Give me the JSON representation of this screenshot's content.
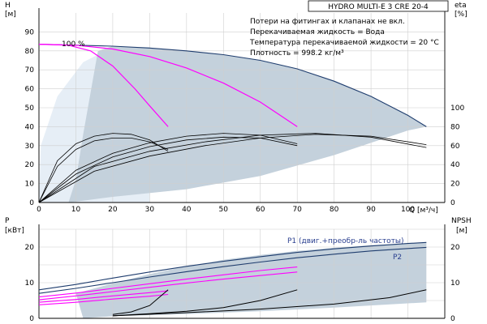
{
  "title": "HYDRO MULTI-E 3 CRE 20-4",
  "notes": [
    "Потери на фитингах и клапанах не вкл.",
    "Перекачиваемая жидкость = Вода",
    "Температура перекачиваемой жидкости = 20 °C",
    "Плотность = 998.2 кг/м³"
  ],
  "speed_label": "100 %",
  "colors": {
    "envelope_fill": "#c4d1dc",
    "envelope_light": "#e6eef6",
    "max_curve": "#1f3d6e",
    "pump_curves": "#ff00ff",
    "eta_curves": "#000000",
    "npsh_curve": "#000000"
  },
  "chart_data": [
    {
      "type": "line",
      "name": "Q-H",
      "xlabel": "Q [м³/ч]",
      "ylabel": "H [м]",
      "y2label": "eta [%]",
      "xlim": [
        0,
        110
      ],
      "ylim": [
        0,
        100
      ],
      "y2lim": [
        0,
        200
      ],
      "x_ticks": [
        0,
        10,
        20,
        30,
        40,
        50,
        60,
        70,
        80,
        90,
        100
      ],
      "y_ticks": [
        0,
        10,
        20,
        30,
        40,
        50,
        60,
        70,
        80,
        90
      ],
      "y2_ticks": [
        0,
        20,
        40,
        60,
        80,
        100
      ],
      "grid": true,
      "series": [
        {
          "label": "100 %",
          "x": [
            0,
            10,
            20,
            30,
            40,
            50,
            60,
            70,
            80,
            90,
            100,
            105
          ],
          "y": [
            83.5,
            83,
            82.5,
            81.5,
            80,
            78,
            75,
            70.5,
            64,
            56,
            46,
            40
          ]
        },
        {
          "x": [
            0,
            8,
            14,
            20,
            26,
            30,
            35
          ],
          "y": [
            83.5,
            83,
            80,
            72,
            60,
            51,
            40
          ]
        },
        {
          "x": [
            0,
            10,
            20,
            30,
            40,
            50,
            60,
            70
          ],
          "y": [
            83.5,
            83,
            81,
            77,
            71,
            63,
            53,
            40
          ]
        },
        {
          "x": [
            0,
            5,
            10,
            15,
            20,
            25,
            30,
            35
          ],
          "y2": [
            0,
            44,
            62,
            70,
            73,
            72,
            66,
            54
          ]
        },
        {
          "x": [
            0,
            5,
            10,
            15,
            20,
            25,
            30,
            35
          ],
          "y2": [
            0,
            38,
            56,
            65,
            68,
            68,
            64,
            56
          ]
        },
        {
          "x": [
            0,
            10,
            20,
            30,
            40,
            50,
            60,
            70
          ],
          "y2": [
            0,
            34,
            52,
            63,
            70,
            73,
            71,
            62
          ]
        },
        {
          "x": [
            0,
            10,
            20,
            30,
            40,
            50,
            60,
            70
          ],
          "y2": [
            0,
            30,
            48,
            59,
            66,
            69,
            68,
            60
          ]
        },
        {
          "x": [
            0,
            15,
            30,
            45,
            60,
            75,
            90,
            105
          ],
          "y2": [
            0,
            38,
            54,
            64,
            71,
            73,
            69,
            58
          ]
        },
        {
          "x": [
            0,
            15,
            30,
            45,
            60,
            75,
            90,
            105
          ],
          "y2": [
            0,
            33,
            49,
            60,
            68,
            72,
            70,
            61
          ]
        }
      ]
    },
    {
      "type": "line",
      "name": "P-NPSH",
      "ylabel": "P [кВт]",
      "y2label": "NPSH [м]",
      "xlim": [
        0,
        110
      ],
      "ylim": [
        0,
        25
      ],
      "y2lim": [
        0,
        25
      ],
      "y_ticks": [
        0,
        10,
        20
      ],
      "y2_ticks": [
        0,
        10,
        20
      ],
      "grid": true,
      "series": [
        {
          "label": "P1 (двиг.+преобр-ль частоты)",
          "x": [
            0,
            10,
            20,
            30,
            40,
            50,
            60,
            70,
            80,
            90,
            100,
            105
          ],
          "y": [
            8,
            9.5,
            11.3,
            13,
            14.6,
            16,
            17.3,
            18.5,
            19.5,
            20.3,
            21,
            21.3
          ]
        },
        {
          "label": "P2",
          "x": [
            0,
            10,
            20,
            30,
            40,
            50,
            60,
            70,
            80,
            90,
            100,
            105
          ],
          "y": [
            7,
            8.4,
            10,
            11.6,
            13.1,
            14.5,
            15.8,
            17,
            18,
            18.9,
            19.6,
            19.9
          ]
        },
        {
          "x": [
            0,
            10,
            20,
            30,
            35
          ],
          "y": [
            4.5,
            5.3,
            6.3,
            7.2,
            7.7
          ]
        },
        {
          "x": [
            0,
            10,
            20,
            30,
            35
          ],
          "y": [
            3.8,
            4.5,
            5.4,
            6.2,
            6.7
          ]
        },
        {
          "x": [
            0,
            10,
            20,
            30,
            40,
            50,
            60,
            70
          ],
          "y": [
            6,
            7.1,
            8.4,
            9.7,
            11,
            12.2,
            13.4,
            14.4
          ]
        },
        {
          "x": [
            0,
            10,
            20,
            30,
            40,
            50,
            60,
            70
          ],
          "y": [
            5.2,
            6.3,
            7.5,
            8.7,
            9.9,
            11,
            12,
            13
          ]
        },
        {
          "x": [
            20,
            25,
            30,
            35
          ],
          "y2": [
            1.1,
            1.8,
            3.6,
            8.0
          ]
        },
        {
          "x": [
            20,
            30,
            40,
            50,
            60,
            70
          ],
          "y2": [
            0.7,
            1.3,
            2.0,
            3.0,
            5.0,
            8.0
          ]
        },
        {
          "x": [
            20,
            40,
            60,
            80,
            95,
            105
          ],
          "y2": [
            0.7,
            1.6,
            2.6,
            4.0,
            5.8,
            8.0
          ]
        }
      ]
    }
  ]
}
